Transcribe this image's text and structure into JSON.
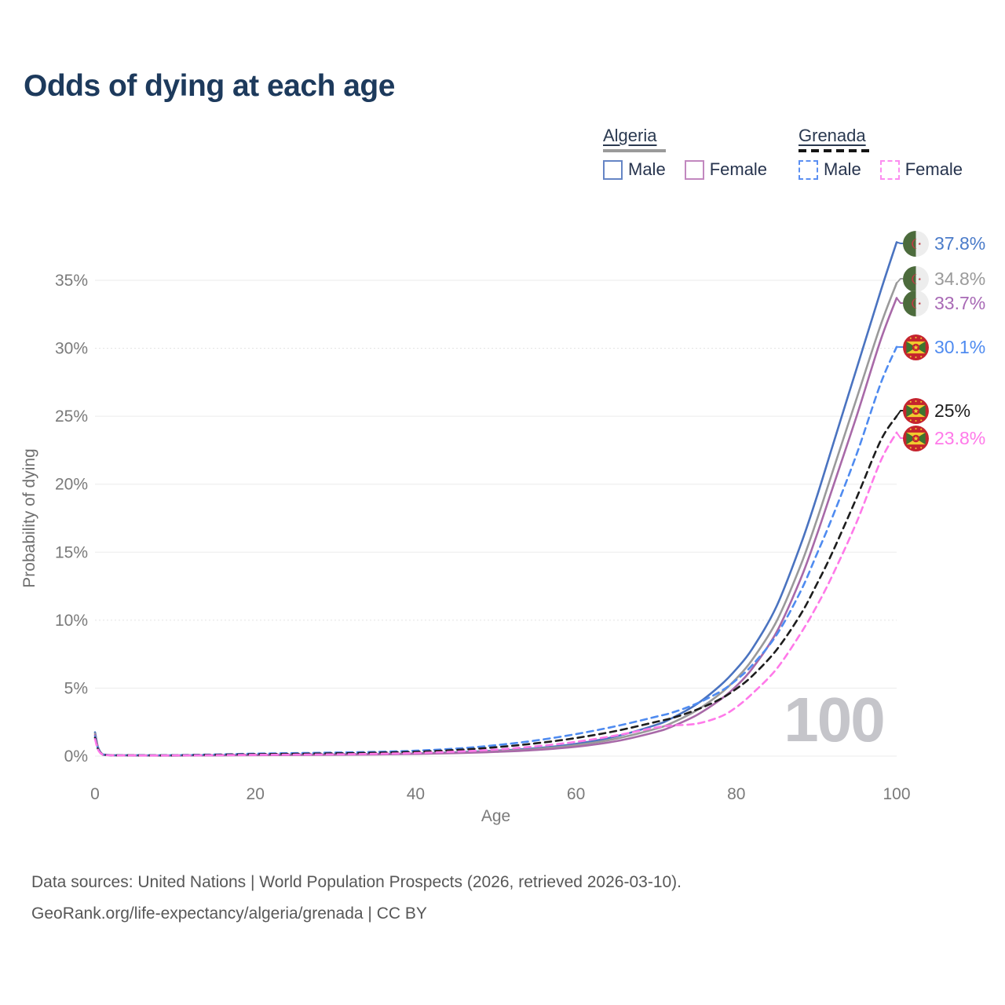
{
  "title": "Odds of dying at each age",
  "legend": {
    "groups": [
      {
        "country": "Algeria",
        "items": [
          {
            "label": "Male"
          },
          {
            "label": "Female"
          }
        ]
      },
      {
        "country": "Grenada",
        "items": [
          {
            "label": "Male"
          },
          {
            "label": "Female"
          }
        ]
      }
    ]
  },
  "watermark": "100",
  "footer": {
    "line1": "Data sources: United Nations | World Population Prospects (2026, retrieved 2026-03-10).",
    "line2": "GeoRank.org/life-expectancy/algeria/grenada | CC BY"
  },
  "chart_data": {
    "type": "line",
    "title": "Odds of dying at each age",
    "xlabel": "Age",
    "ylabel": "Probability of dying",
    "xlim": [
      0,
      100
    ],
    "ylim": [
      0,
      38
    ],
    "grid": "horizontal",
    "legend_position": "top-right",
    "x_ticks": [
      {
        "v": 0,
        "label": "0"
      },
      {
        "v": 20,
        "label": "20"
      },
      {
        "v": 40,
        "label": "40"
      },
      {
        "v": 60,
        "label": "60"
      },
      {
        "v": 80,
        "label": "80"
      },
      {
        "v": 100,
        "label": "100"
      }
    ],
    "y_ticks": [
      {
        "v": 0,
        "label": "0%"
      },
      {
        "v": 5,
        "label": "5%"
      },
      {
        "v": 10,
        "label": "10%"
      },
      {
        "v": 15,
        "label": "15%"
      },
      {
        "v": 20,
        "label": "20%"
      },
      {
        "v": 25,
        "label": "25%"
      },
      {
        "v": 30,
        "label": "30%"
      },
      {
        "v": 35,
        "label": "35%"
      }
    ],
    "x": [
      0,
      1,
      5,
      10,
      15,
      20,
      25,
      30,
      35,
      40,
      45,
      50,
      55,
      60,
      65,
      70,
      72,
      75,
      78,
      80,
      82,
      85,
      88,
      90,
      92,
      95,
      98,
      100
    ],
    "series": [
      {
        "name": "Algeria Male",
        "country": "Algeria",
        "sex": "Male",
        "style": "solid",
        "color": "#4a73c0",
        "label_color": "#4a7bc9",
        "flag": "algeria",
        "end_label": "37.8%",
        "end_value": 37.8,
        "values": [
          1.75,
          0.12,
          0.05,
          0.05,
          0.07,
          0.1,
          0.11,
          0.13,
          0.16,
          0.2,
          0.28,
          0.4,
          0.58,
          0.9,
          1.45,
          2.3,
          2.8,
          3.8,
          5.2,
          6.4,
          7.9,
          11.0,
          15.5,
          19.0,
          22.8,
          28.5,
          34.2,
          37.8
        ]
      },
      {
        "name": "Algeria",
        "country": "Algeria",
        "sex": "Both",
        "style": "solid",
        "color": "#9a9a9a",
        "label_color": "#9a9a9a",
        "flag": "algeria",
        "end_label": "34.8%",
        "end_value": 34.8,
        "values": [
          1.65,
          0.11,
          0.05,
          0.04,
          0.06,
          0.09,
          0.1,
          0.12,
          0.14,
          0.18,
          0.25,
          0.36,
          0.52,
          0.8,
          1.28,
          2.02,
          2.45,
          3.35,
          4.6,
          5.7,
          7.1,
          9.9,
          14.0,
          17.3,
          20.9,
          26.3,
          31.7,
          34.8
        ]
      },
      {
        "name": "Algeria Female",
        "country": "Algeria",
        "sex": "Female",
        "style": "solid",
        "color": "#a869a8",
        "label_color": "#a869b5",
        "flag": "algeria",
        "end_label": "33.7%",
        "end_value": 33.7,
        "values": [
          1.55,
          0.1,
          0.04,
          0.04,
          0.05,
          0.07,
          0.08,
          0.1,
          0.12,
          0.16,
          0.22,
          0.31,
          0.45,
          0.69,
          1.1,
          1.78,
          2.18,
          3.0,
          4.15,
          5.15,
          6.45,
          9.1,
          13.0,
          16.2,
          19.7,
          25.0,
          30.6,
          33.7
        ]
      },
      {
        "name": "Grenada Male",
        "country": "Grenada",
        "sex": "Male",
        "style": "dashed",
        "color": "#4f8bf0",
        "label_color": "#4f8bf0",
        "flag": "grenada",
        "end_label": "30.1%",
        "end_value": 30.1,
        "values": [
          1.45,
          0.12,
          0.07,
          0.07,
          0.12,
          0.18,
          0.22,
          0.26,
          0.31,
          0.4,
          0.55,
          0.8,
          1.15,
          1.62,
          2.2,
          2.9,
          3.2,
          3.85,
          4.75,
          5.6,
          6.7,
          8.9,
          12.1,
          14.8,
          17.6,
          22.2,
          27.4,
          30.1
        ]
      },
      {
        "name": "Grenada",
        "country": "Grenada",
        "sex": "Both",
        "style": "dashed",
        "color": "#1d1d1d",
        "label_color": "#1d1d1d",
        "flag": "grenada",
        "end_label": "25%",
        "end_value": 25,
        "values": [
          1.35,
          0.11,
          0.06,
          0.06,
          0.1,
          0.14,
          0.17,
          0.2,
          0.25,
          0.32,
          0.45,
          0.65,
          0.94,
          1.33,
          1.85,
          2.52,
          2.8,
          3.4,
          4.2,
          4.95,
          5.9,
          7.8,
          10.4,
          12.6,
          15.0,
          19.0,
          23.2,
          25.0
        ]
      },
      {
        "name": "Grenada Female",
        "country": "Grenada",
        "sex": "Female",
        "style": "dashed",
        "color": "#ff79e9",
        "label_color": "#ff79e9",
        "flag": "grenada",
        "end_label": "23.8%",
        "end_value": 23.8,
        "values": [
          1.25,
          0.1,
          0.05,
          0.05,
          0.07,
          0.09,
          0.11,
          0.13,
          0.17,
          0.23,
          0.33,
          0.48,
          0.72,
          1.05,
          1.52,
          2.1,
          2.25,
          2.38,
          2.9,
          3.6,
          4.6,
          6.4,
          9.0,
          11.0,
          13.3,
          17.2,
          21.7,
          23.8
        ]
      }
    ]
  }
}
